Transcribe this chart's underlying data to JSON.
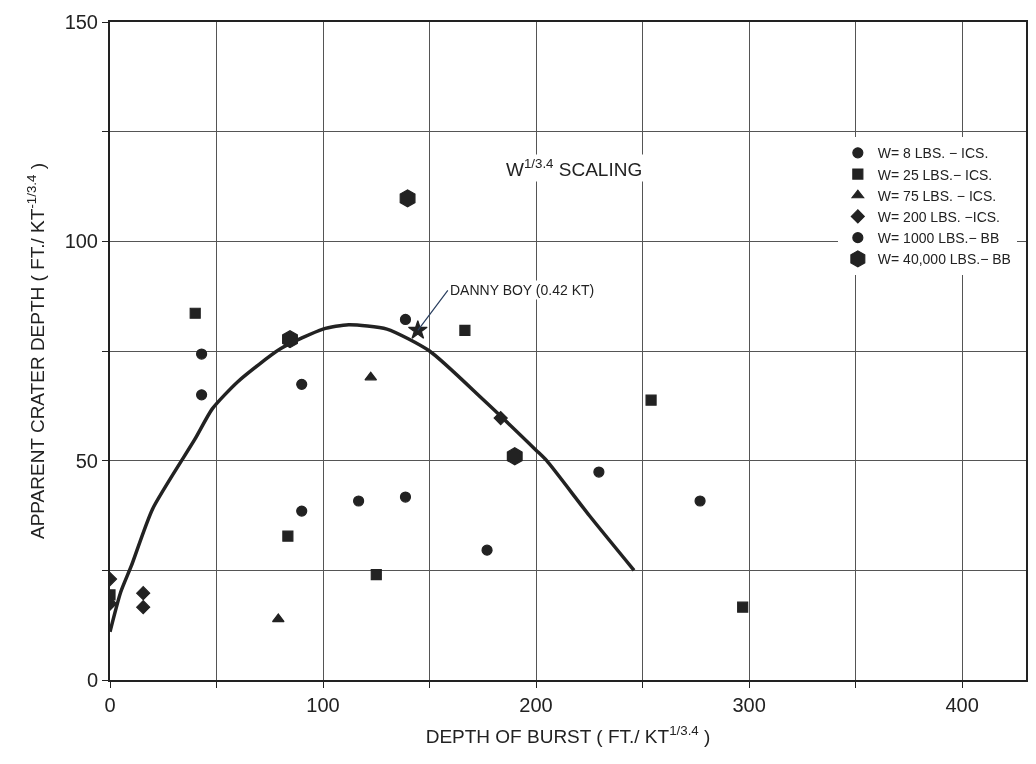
{
  "chart_data": {
    "type": "scatter",
    "xlabel": "DEPTH OF BURST ( FT./ KT$^{1/3.4}$ )",
    "ylabel": "APPARENT CRATER DEPTH ( FT./ KT$^{-1/3.4}$ )",
    "annotations": [
      "W$^{1/3.4}$ SCALING",
      {
        "text": "DANNY BOY (0.42 KT)",
        "x": 144.5,
        "y": 79.7
      }
    ],
    "xlim": [
      0,
      430
    ],
    "ylim": [
      0,
      150
    ],
    "xticks": [
      0,
      {
        "value": 50,
        "label": null
      },
      100,
      {
        "value": 150,
        "label": null
      },
      200,
      {
        "value": 250,
        "label": null
      },
      300,
      {
        "value": 350,
        "label": null
      },
      400
    ],
    "yticks": [
      0,
      {
        "value": 25,
        "label": null
      },
      50,
      {
        "value": 75,
        "label": null
      },
      100,
      {
        "value": 125,
        "label": null
      },
      150
    ],
    "grid": true,
    "legend": "right",
    "series": [
      {
        "name": "W= 8 LBS. − ICS.",
        "color": "#222222",
        "marker": "circle",
        "x": [
          116.7,
          277
        ],
        "values": [
          40.8,
          40.8
        ]
      },
      {
        "name": "W= 25 LBS.− ICS.",
        "color": "#222222",
        "marker": "square",
        "x": [
          0,
          40,
          83.5,
          125,
          166.6,
          254,
          297
        ],
        "values": [
          19.4,
          83.6,
          32.8,
          24,
          79.7,
          63.8,
          16.6
        ]
      },
      {
        "name": "W= 75 LBS. − ICS.",
        "color": "#222222",
        "marker": "triangle",
        "x": [
          79,
          122.4
        ],
        "values": [
          13.9,
          69
        ]
      },
      {
        "name": "W= 200 LBS. −ICS.",
        "color": "#222222",
        "marker": "diamond",
        "x": [
          0,
          0,
          15.6,
          15.6,
          183.4
        ],
        "values": [
          23,
          17.4,
          19.8,
          16.6,
          59.7
        ]
      },
      {
        "name": "W= 1000 LBS.− BB",
        "color": "#222222",
        "marker": "circle",
        "x": [
          43,
          43,
          90,
          90,
          138.7,
          138.7,
          177,
          229.5
        ],
        "values": [
          74.3,
          65,
          67.4,
          38.5,
          82.2,
          41.7,
          29.6,
          47.4
        ]
      },
      {
        "name": "W= 40,000 LBS.− BB",
        "color": "#222222",
        "x": [
          139.7,
          84.5,
          190
        ],
        "values": [
          109.8,
          77.7,
          51
        ]
      },
      {
        "color": "#222222",
        "marker": "star",
        "x": [
          144.5
        ],
        "values": [
          79.7
        ]
      },
      {
        "type": "line",
        "color": "#222222",
        "marker": "none",
        "line_style": "solid",
        "x": [
          0,
          5,
          10,
          20,
          40,
          48,
          60,
          80,
          100,
          112,
          130,
          150,
          175,
          200,
          205,
          225,
          246
        ],
        "values": [
          11,
          20,
          26,
          39,
          55,
          61.8,
          68,
          75.5,
          80,
          81,
          80,
          75,
          64,
          52.4,
          50,
          37.5,
          25
        ]
      }
    ]
  }
}
